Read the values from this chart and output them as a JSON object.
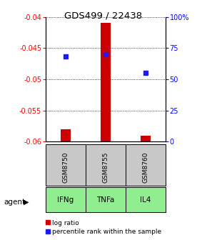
{
  "title": "GDS499 / 22438",
  "samples": [
    "GSM8750",
    "GSM8755",
    "GSM8760"
  ],
  "agents": [
    "IFNg",
    "TNFa",
    "IL4"
  ],
  "log_ratios": [
    -0.058,
    -0.041,
    -0.059
  ],
  "percentile_ranks": [
    68,
    70,
    55
  ],
  "ylim_left": [
    -0.06,
    -0.04
  ],
  "ylim_right": [
    0,
    100
  ],
  "yticks_left": [
    -0.06,
    -0.055,
    -0.05,
    -0.045,
    -0.04
  ],
  "yticks_right": [
    0,
    25,
    50,
    75,
    100
  ],
  "ytick_labels_left": [
    "-0.06",
    "-0.055",
    "-0.05",
    "-0.045",
    "-0.04"
  ],
  "ytick_labels_right": [
    "0",
    "25",
    "50",
    "75",
    "100%"
  ],
  "bar_color": "#cc0000",
  "dot_color": "#1a1aff",
  "sample_box_color": "#c8c8c8",
  "agent_box_color": "#90ee90",
  "legend_bar_label": "log ratio",
  "legend_dot_label": "percentile rank within the sample",
  "bar_width": 0.25
}
